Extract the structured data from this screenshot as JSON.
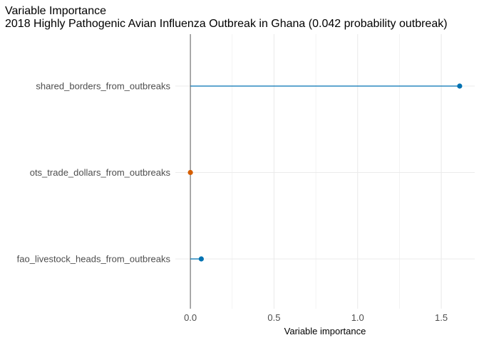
{
  "chart_data": {
    "type": "lollipop",
    "title": "Variable Importance",
    "subtitle": "2018 Highly Pathogenic Avian Influenza Outbreak in Ghana (0.042 probability outbreak)",
    "xlabel": "Variable importance",
    "ylabel": "",
    "xlim": [
      -0.09,
      1.7
    ],
    "x_ticks": [
      0.0,
      0.5,
      1.0,
      1.5
    ],
    "x_tick_labels": [
      "0.0",
      "0.5",
      "1.0",
      "1.5"
    ],
    "grid": true,
    "legend": "none",
    "zero_line": true,
    "categories": [
      "shared_borders_from_outbreaks",
      "ots_trade_dollars_from_outbreaks",
      "fao_livestock_heads_from_outbreaks"
    ],
    "values": [
      1.61,
      0.0,
      0.065
    ],
    "point_colors": [
      "#0072B2",
      "#D55E00",
      "#0072B2"
    ]
  },
  "colors": {
    "positive": "#0072B2",
    "zero": "#D55E00",
    "grid": "#EBEBEB",
    "zero_line": "#7F7F7F",
    "text": "#000000",
    "tick_text": "#4D4D4D"
  }
}
